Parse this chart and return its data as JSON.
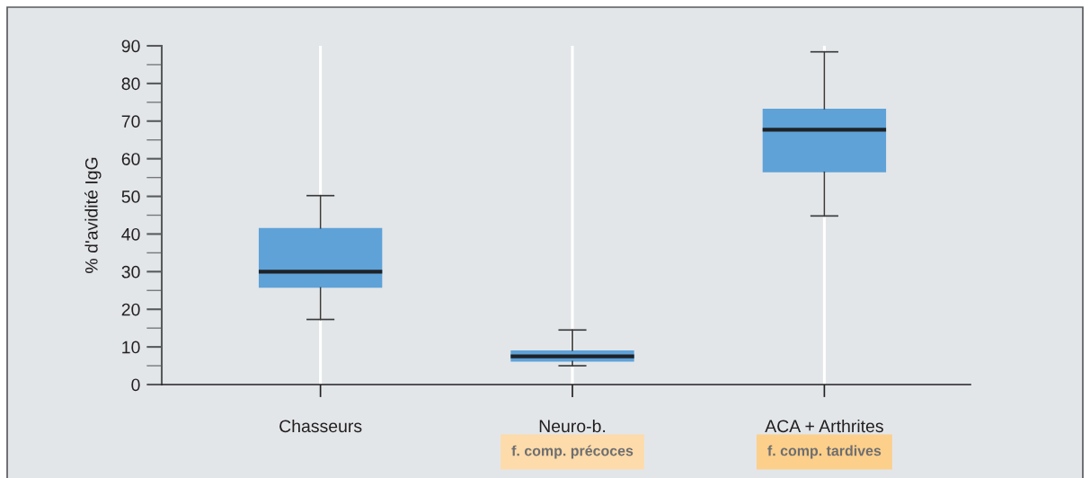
{
  "chart_data": {
    "type": "box",
    "ylabel": "% d'avidité IgG",
    "categories": [
      "Chasseurs",
      "Neuro-b.",
      "ACA + Arthrites"
    ],
    "series": [
      {
        "color": "#5ea2d8",
        "boxes": [
          {
            "low": 17.3,
            "q1": 25.7,
            "median": 30.0,
            "q3": 41.6,
            "high": 50.2
          },
          {
            "low": 5.0,
            "q1": 6.1,
            "median": 7.5,
            "q3": 9.1,
            "high": 14.5
          },
          {
            "low": 44.8,
            "q1": 56.4,
            "median": 67.7,
            "q3": 73.3,
            "high": 88.4
          }
        ]
      }
    ],
    "ylim": [
      0,
      90
    ],
    "yticks": [
      0,
      10,
      20,
      30,
      40,
      50,
      60,
      70,
      80,
      90
    ],
    "grid": "x",
    "annotations": [
      "f. comp. précoces",
      "f. comp. tardives"
    ]
  }
}
